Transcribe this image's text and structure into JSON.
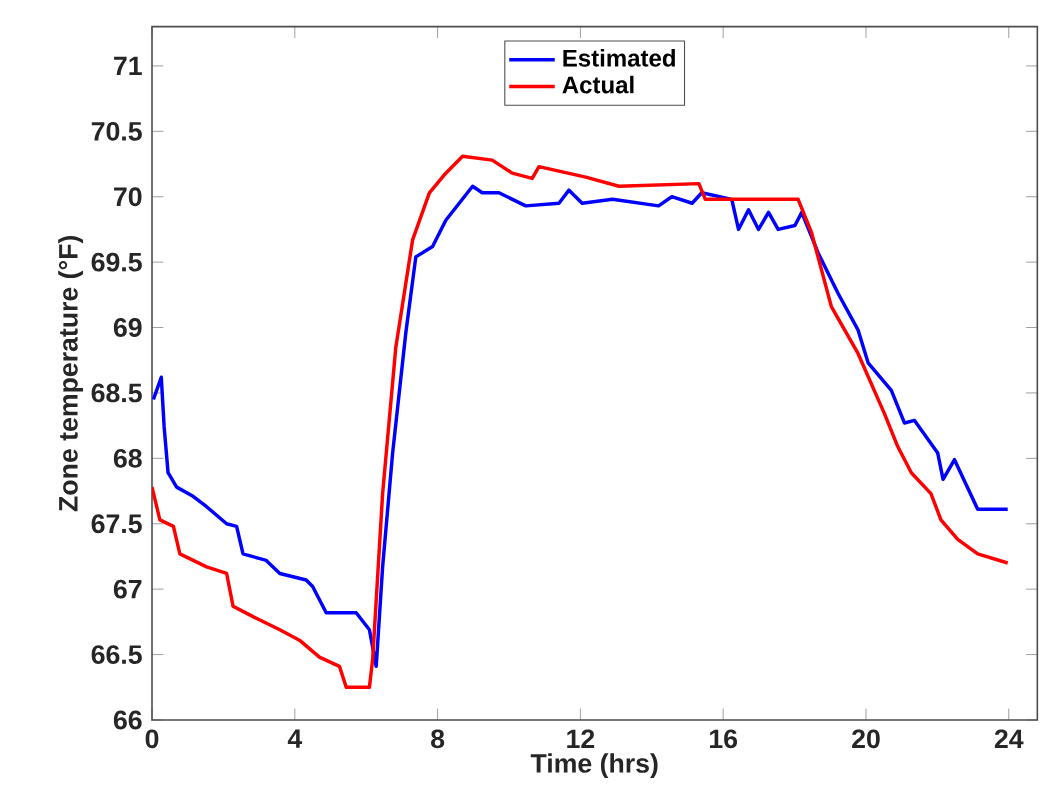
{
  "chart_data": {
    "type": "line",
    "xlabel": "Time (hrs)",
    "ylabel": "Zone temperature (°F)",
    "xlim": [
      0,
      24.8
    ],
    "ylim": [
      66,
      71.3
    ],
    "xticks": [
      0,
      4,
      8,
      12,
      16,
      20,
      24
    ],
    "yticks": [
      66,
      66.5,
      67,
      67.5,
      68,
      68.5,
      69,
      69.5,
      70,
      70.5,
      71
    ],
    "grid": false,
    "legend": "top",
    "line_style": "solid",
    "marker": "none",
    "series": [
      {
        "name": "Estimated",
        "color": "#0000ff",
        "x": [
          0.04,
          0.26,
          0.34,
          0.45,
          0.69,
          1.15,
          1.53,
          2.09,
          2.37,
          2.55,
          3.2,
          3.58,
          4.32,
          4.5,
          4.88,
          5.72,
          6.09,
          6.28,
          6.46,
          6.74,
          7.11,
          7.39,
          7.86,
          8.23,
          8.98,
          9.25,
          9.72,
          10.47,
          11.4,
          11.68,
          12.05,
          12.9,
          14.19,
          14.56,
          15.13,
          15.4,
          16.24,
          16.43,
          16.71,
          16.99,
          17.27,
          17.54,
          18.01,
          18.2,
          18.66,
          19.22,
          19.78,
          20.06,
          20.71,
          21.08,
          21.36,
          22.01,
          22.16,
          22.48,
          23.13,
          23.97
        ],
        "values": [
          68.45,
          68.62,
          68.24,
          67.89,
          67.78,
          67.71,
          67.63,
          67.5,
          67.48,
          67.27,
          67.22,
          67.12,
          67.07,
          67.02,
          66.82,
          66.82,
          66.69,
          66.41,
          67.17,
          68.04,
          68.96,
          69.54,
          69.62,
          69.82,
          70.08,
          70.03,
          70.03,
          69.93,
          69.95,
          70.05,
          69.95,
          69.98,
          69.93,
          70.0,
          69.95,
          70.03,
          69.98,
          69.75,
          69.9,
          69.75,
          69.88,
          69.75,
          69.78,
          69.88,
          69.57,
          69.26,
          68.98,
          68.73,
          68.52,
          68.27,
          68.29,
          68.04,
          67.84,
          67.99,
          67.61,
          67.61
        ]
      },
      {
        "name": "Actual",
        "color": "#ff0000",
        "x": [
          0,
          0.22,
          0.6,
          0.78,
          1.53,
          2.09,
          2.27,
          2.83,
          3.58,
          4.13,
          4.69,
          5.25,
          5.44,
          6.09,
          6.18,
          6.46,
          6.83,
          7.3,
          7.77,
          8.23,
          8.7,
          9.53,
          10.09,
          10.65,
          10.84,
          12.15,
          13.08,
          15.32,
          15.5,
          18.1,
          18.47,
          19.03,
          19.78,
          20.52,
          20.89,
          21.27,
          21.82,
          22.1,
          22.57,
          23.13,
          23.97
        ],
        "values": [
          67.78,
          67.53,
          67.48,
          67.27,
          67.17,
          67.12,
          66.87,
          66.79,
          66.69,
          66.61,
          66.48,
          66.41,
          66.25,
          66.25,
          66.46,
          67.73,
          68.85,
          69.67,
          70.03,
          70.18,
          70.31,
          70.28,
          70.18,
          70.14,
          70.23,
          70.15,
          70.08,
          70.1,
          69.98,
          69.98,
          69.73,
          69.16,
          68.8,
          68.34,
          68.09,
          67.89,
          67.73,
          67.53,
          67.38,
          67.27,
          67.2
        ]
      }
    ]
  }
}
